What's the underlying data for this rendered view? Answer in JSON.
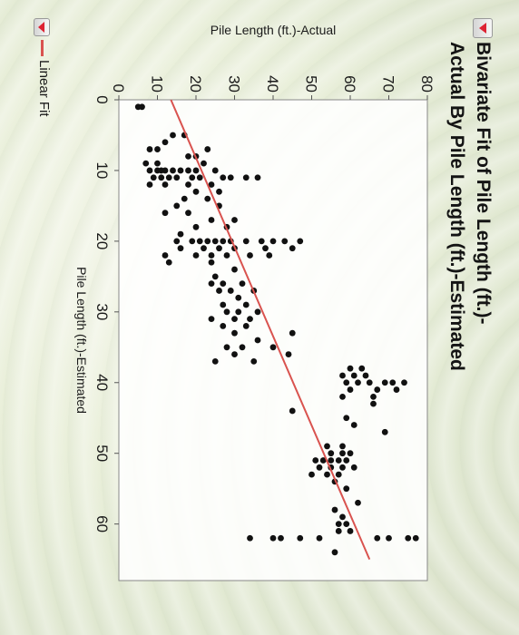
{
  "report": {
    "title_line1": "Bivariate Fit of Pile Length (ft.)-",
    "title_line2": "Actual By Pile Length (ft.)-Estimated",
    "fit_label": "Linear Fit",
    "disclosure_icon": "red-triangle-icon"
  },
  "chart_data": {
    "type": "scatter",
    "xlabel": "Pile Length (ft.)-Estimated",
    "ylabel": "Pile Length (ft.)-Actual",
    "xlim": [
      0,
      68
    ],
    "ylim": [
      0,
      80
    ],
    "xticks": [
      0,
      10,
      20,
      30,
      40,
      50,
      60
    ],
    "yticks": [
      0,
      10,
      20,
      30,
      40,
      50,
      60,
      70,
      80
    ],
    "grid": false,
    "point_color": "#111111",
    "fit_color": "#d9534f",
    "points": [
      [
        1,
        5
      ],
      [
        1,
        6
      ],
      [
        5,
        14
      ],
      [
        5,
        17
      ],
      [
        6,
        12
      ],
      [
        7,
        8
      ],
      [
        7,
        10
      ],
      [
        7,
        23
      ],
      [
        8,
        18
      ],
      [
        8,
        20
      ],
      [
        9,
        7
      ],
      [
        9,
        10
      ],
      [
        9,
        22
      ],
      [
        10,
        8
      ],
      [
        10,
        10
      ],
      [
        10,
        11
      ],
      [
        10,
        12
      ],
      [
        10,
        14
      ],
      [
        10,
        16
      ],
      [
        10,
        18
      ],
      [
        10,
        20
      ],
      [
        10,
        25
      ],
      [
        11,
        9
      ],
      [
        11,
        11
      ],
      [
        11,
        13
      ],
      [
        11,
        15
      ],
      [
        11,
        19
      ],
      [
        11,
        21
      ],
      [
        11,
        27
      ],
      [
        11,
        29
      ],
      [
        11,
        33
      ],
      [
        11,
        36
      ],
      [
        12,
        8
      ],
      [
        12,
        12
      ],
      [
        12,
        18
      ],
      [
        12,
        24
      ],
      [
        13,
        20
      ],
      [
        13,
        26
      ],
      [
        14,
        17
      ],
      [
        14,
        23
      ],
      [
        15,
        15
      ],
      [
        15,
        26
      ],
      [
        16,
        12
      ],
      [
        16,
        18
      ],
      [
        17,
        24
      ],
      [
        17,
        30
      ],
      [
        18,
        20
      ],
      [
        18,
        28
      ],
      [
        19,
        16
      ],
      [
        20,
        15
      ],
      [
        20,
        19
      ],
      [
        20,
        21
      ],
      [
        20,
        23
      ],
      [
        20,
        25
      ],
      [
        20,
        27
      ],
      [
        20,
        29
      ],
      [
        20,
        33
      ],
      [
        20,
        37
      ],
      [
        20,
        40
      ],
      [
        20,
        43
      ],
      [
        20,
        47
      ],
      [
        21,
        16
      ],
      [
        21,
        22
      ],
      [
        21,
        26
      ],
      [
        21,
        30
      ],
      [
        21,
        38
      ],
      [
        21,
        45
      ],
      [
        22,
        12
      ],
      [
        22,
        20
      ],
      [
        22,
        24
      ],
      [
        22,
        28
      ],
      [
        22,
        34
      ],
      [
        22,
        39
      ],
      [
        23,
        13
      ],
      [
        23,
        24
      ],
      [
        24,
        30
      ],
      [
        25,
        25
      ],
      [
        26,
        24
      ],
      [
        26,
        27
      ],
      [
        26,
        32
      ],
      [
        27,
        26
      ],
      [
        27,
        29
      ],
      [
        27,
        35
      ],
      [
        28,
        31
      ],
      [
        29,
        27
      ],
      [
        29,
        33
      ],
      [
        30,
        28
      ],
      [
        30,
        31
      ],
      [
        30,
        36
      ],
      [
        31,
        24
      ],
      [
        31,
        30
      ],
      [
        31,
        34
      ],
      [
        32,
        27
      ],
      [
        32,
        33
      ],
      [
        33,
        30
      ],
      [
        33,
        45
      ],
      [
        34,
        36
      ],
      [
        35,
        28
      ],
      [
        35,
        32
      ],
      [
        35,
        40
      ],
      [
        36,
        30
      ],
      [
        36,
        44
      ],
      [
        37,
        35
      ],
      [
        37,
        25
      ],
      [
        38,
        60
      ],
      [
        38,
        63
      ],
      [
        39,
        58
      ],
      [
        39,
        61
      ],
      [
        39,
        64
      ],
      [
        40,
        59
      ],
      [
        40,
        62
      ],
      [
        40,
        65
      ],
      [
        40,
        69
      ],
      [
        40,
        71
      ],
      [
        40,
        74
      ],
      [
        41,
        60
      ],
      [
        41,
        67
      ],
      [
        41,
        72
      ],
      [
        42,
        58
      ],
      [
        42,
        66
      ],
      [
        43,
        66
      ],
      [
        44,
        45
      ],
      [
        45,
        59
      ],
      [
        46,
        61
      ],
      [
        47,
        69
      ],
      [
        49,
        54
      ],
      [
        49,
        58
      ],
      [
        50,
        55
      ],
      [
        50,
        58
      ],
      [
        50,
        60
      ],
      [
        51,
        51
      ],
      [
        51,
        53
      ],
      [
        51,
        55
      ],
      [
        51,
        57
      ],
      [
        51,
        59
      ],
      [
        52,
        52
      ],
      [
        52,
        55
      ],
      [
        52,
        58
      ],
      [
        52,
        61
      ],
      [
        53,
        50
      ],
      [
        53,
        54
      ],
      [
        53,
        57
      ],
      [
        54,
        56
      ],
      [
        55,
        59
      ],
      [
        57,
        62
      ],
      [
        58,
        56
      ],
      [
        59,
        58
      ],
      [
        60,
        57
      ],
      [
        60,
        59
      ],
      [
        61,
        57
      ],
      [
        61,
        60
      ],
      [
        62,
        34
      ],
      [
        62,
        40
      ],
      [
        62,
        42
      ],
      [
        62,
        47
      ],
      [
        62,
        52
      ],
      [
        62,
        67
      ],
      [
        62,
        70
      ],
      [
        62,
        75
      ],
      [
        62,
        77
      ],
      [
        64,
        56
      ]
    ],
    "fit_line": {
      "x": [
        0,
        65
      ],
      "y": [
        13.5,
        65
      ]
    }
  }
}
